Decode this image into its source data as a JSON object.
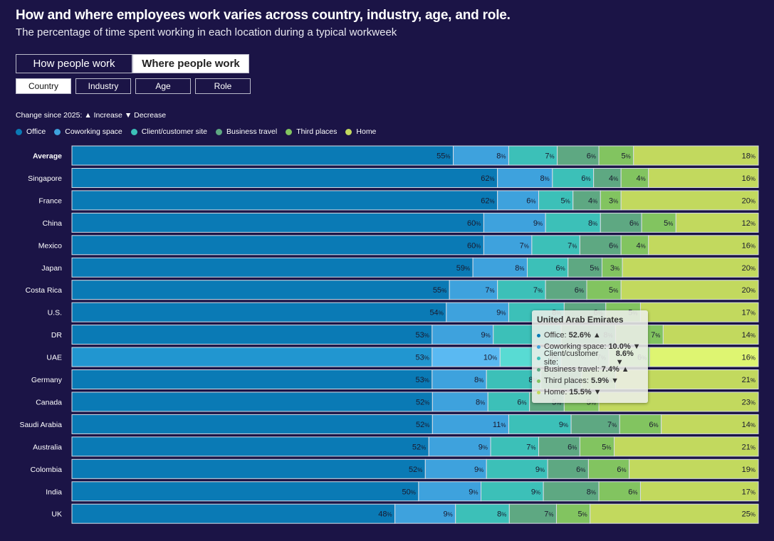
{
  "header": {
    "title": "How and where employees work varies across country, industry, age, and role.",
    "subtitle": "The percentage of time spent working in each location during a typical workweek"
  },
  "view_toggle": {
    "options": [
      "How people work",
      "Where people work"
    ],
    "selected": "Where people work"
  },
  "filter_tabs": {
    "options": [
      "Country",
      "Industry",
      "Age",
      "Role"
    ],
    "selected": "Country"
  },
  "change_note": "Change since 2025: ▲ Increase ▼ Decrease",
  "legend": [
    {
      "label": "Office",
      "color": "#0a7ab5"
    },
    {
      "label": "Coworking space",
      "color": "#3ea2dd"
    },
    {
      "label": "Client/customer site",
      "color": "#3cc0b8"
    },
    {
      "label": "Business travel",
      "color": "#5ea882"
    },
    {
      "label": "Third places",
      "color": "#82c460"
    },
    {
      "label": "Home",
      "color": "#c2d95e"
    }
  ],
  "tooltip": {
    "title": "United Arab Emirates",
    "items": [
      {
        "label": "Office:",
        "value": "52.6%",
        "change": "▲",
        "color": "#0a7ab5"
      },
      {
        "label": "Coworking space:",
        "value": "10.0%",
        "change": "▼",
        "color": "#3ea2dd"
      },
      {
        "label": "Client/customer site:",
        "value": "8.6%",
        "change": "▼",
        "color": "#3cc0b8"
      },
      {
        "label": "Business travel:",
        "value": "7.4%",
        "change": "▲",
        "color": "#5ea882"
      },
      {
        "label": "Third places:",
        "value": "5.9%",
        "change": "▼",
        "color": "#82c460"
      },
      {
        "label": "Home:",
        "value": "15.5%",
        "change": "▼",
        "color": "#c2d95e"
      }
    ]
  },
  "chart_data": {
    "type": "bar",
    "orientation": "horizontal-stacked-100",
    "title": "How and where employees work varies across country, industry, age, and role.",
    "subtitle": "The percentage of time spent working in each location during a typical workweek",
    "unit": "%",
    "highlighted_category": "UAE",
    "categories": [
      "Average",
      "Singapore",
      "France",
      "China",
      "Mexico",
      "Japan",
      "Costa Rica",
      "U.S.",
      "DR",
      "UAE",
      "Germany",
      "Canada",
      "Saudi Arabia",
      "Australia",
      "Colombia",
      "India",
      "UK"
    ],
    "series": [
      {
        "name": "Office",
        "color": "#0a7ab5",
        "highlight_color": "#2196d0",
        "values": [
          55,
          62,
          62,
          60,
          60,
          59,
          55,
          54,
          53,
          53,
          53,
          52,
          52,
          52,
          52,
          50,
          48
        ]
      },
      {
        "name": "Coworking space",
        "color": "#3ea2dd",
        "highlight_color": "#5ab9f2",
        "values": [
          8,
          8,
          6,
          9,
          7,
          8,
          7,
          9,
          9,
          10,
          8,
          8,
          11,
          9,
          9,
          9,
          9
        ]
      },
      {
        "name": "Client/customer site",
        "color": "#3cc0b8",
        "highlight_color": "#58dbd3",
        "values": [
          7,
          6,
          5,
          8,
          7,
          6,
          7,
          8,
          10,
          9,
          8,
          6,
          9,
          7,
          9,
          9,
          8
        ]
      },
      {
        "name": "Business travel",
        "color": "#5ea882",
        "highlight_color": "#7cc79f",
        "values": [
          6,
          4,
          4,
          6,
          6,
          5,
          6,
          6,
          8,
          7,
          6,
          5,
          7,
          6,
          6,
          8,
          7
        ]
      },
      {
        "name": "Third places",
        "color": "#82c460",
        "highlight_color": "#9de27a",
        "values": [
          5,
          4,
          3,
          5,
          4,
          3,
          5,
          5,
          7,
          6,
          5,
          5,
          6,
          5,
          6,
          6,
          5
        ]
      },
      {
        "name": "Home",
        "color": "#c2d95e",
        "highlight_color": "#def571",
        "values": [
          18,
          16,
          20,
          12,
          16,
          20,
          20,
          17,
          14,
          16,
          21,
          23,
          14,
          21,
          19,
          17,
          25
        ]
      }
    ],
    "xlim": [
      0,
      100
    ],
    "grid": false,
    "legend_position": "top-left"
  }
}
